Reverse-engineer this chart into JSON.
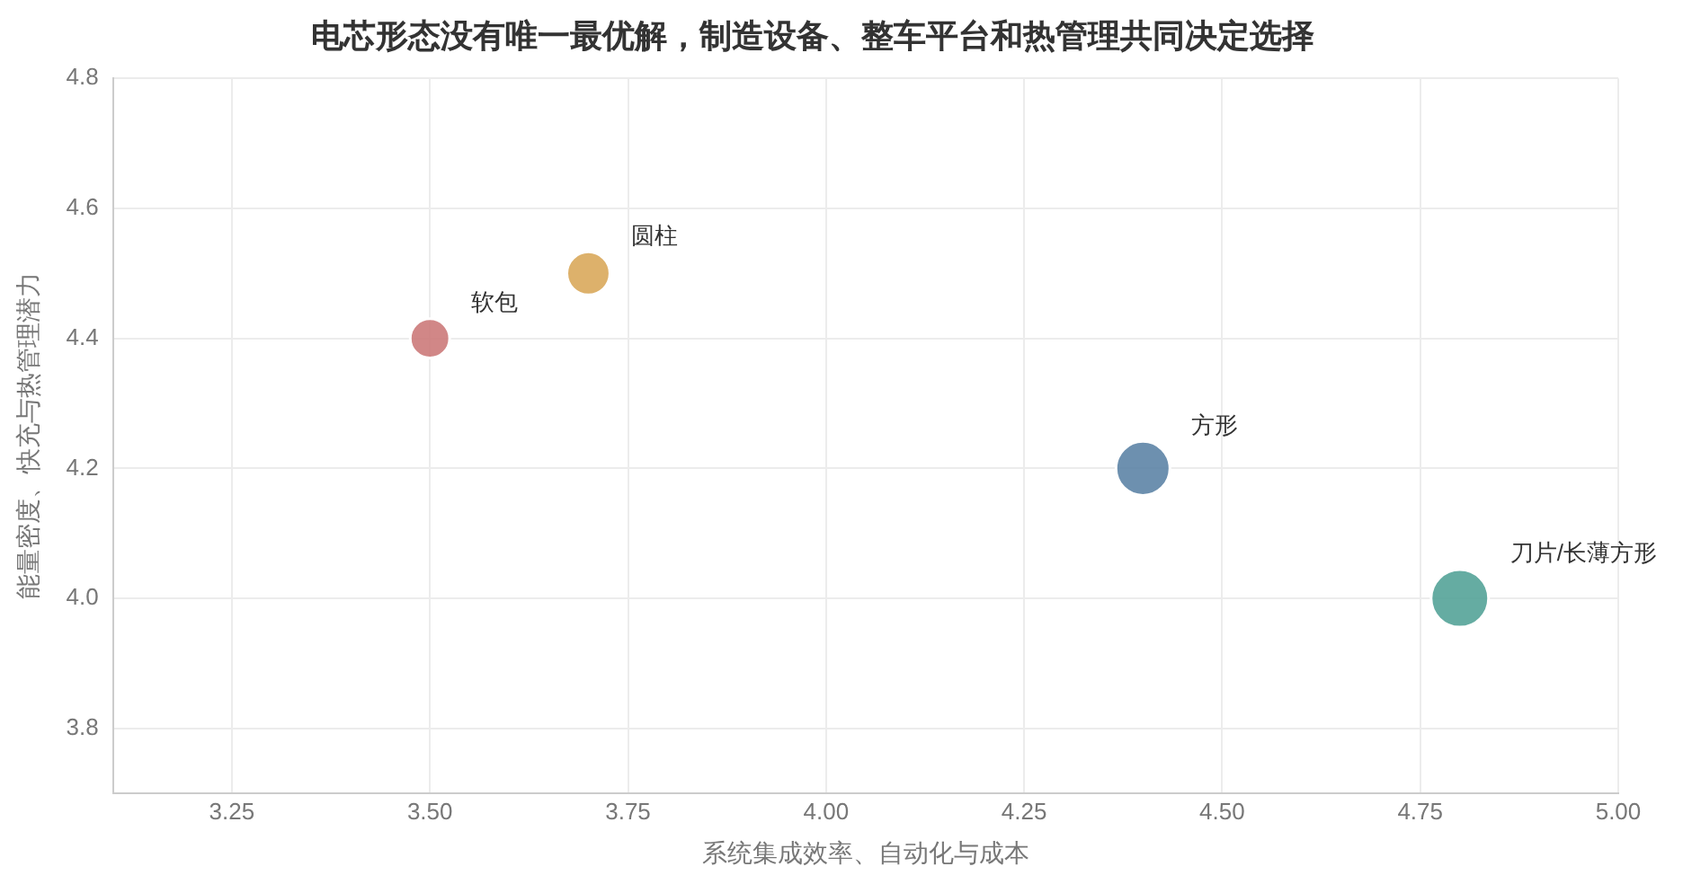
{
  "chart_data": {
    "type": "bubble",
    "title": "电芯形态没有唯一最优解，制造设备、整车平台和热管理共同决定选择",
    "xlabel": "系统集成效率、自动化与成本",
    "ylabel": "能量密度、快充与热管理潜力",
    "xlim": [
      3.1,
      5.0
    ],
    "xticks": [
      {
        "value": 3.25,
        "label": "3.25"
      },
      {
        "value": 3.5,
        "label": "3.50"
      },
      {
        "value": 3.75,
        "label": "3.75"
      },
      {
        "value": 4.0,
        "label": "4.00"
      },
      {
        "value": 4.25,
        "label": "4.25"
      },
      {
        "value": 4.5,
        "label": "4.50"
      },
      {
        "value": 4.75,
        "label": "4.75"
      },
      {
        "value": 5.0,
        "label": "5.00"
      }
    ],
    "ylim": [
      3.7,
      4.8
    ],
    "yticks": [
      {
        "value": 3.8,
        "label": "3.8"
      },
      {
        "value": 4.0,
        "label": "4.0"
      },
      {
        "value": 4.2,
        "label": "4.2"
      },
      {
        "value": 4.4,
        "label": "4.4"
      },
      {
        "value": 4.6,
        "label": "4.6"
      },
      {
        "value": 4.8,
        "label": "4.8"
      }
    ],
    "grid": true,
    "legend": false,
    "series": [
      {
        "name": "软包",
        "color": "#cc7a7a",
        "x": [
          3.5
        ],
        "values": [
          4.4
        ],
        "sizes": [
          0.47
        ]
      },
      {
        "name": "圆柱",
        "color": "#d9a85b",
        "x": [
          3.7
        ],
        "values": [
          4.5
        ],
        "sizes": [
          0.56
        ]
      },
      {
        "name": "方形",
        "color": "#5d84a6",
        "x": [
          4.4
        ],
        "values": [
          4.2
        ],
        "sizes": [
          0.88
        ]
      },
      {
        "name": "刀片/长薄方形",
        "color": "#54a398",
        "x": [
          4.8
        ],
        "values": [
          4.0
        ],
        "sizes": [
          1
        ]
      }
    ]
  }
}
